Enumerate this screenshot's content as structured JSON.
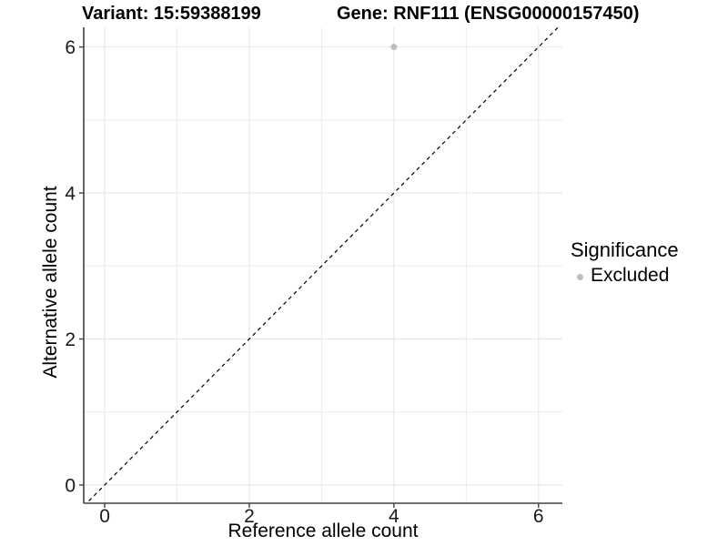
{
  "titles": {
    "variant": "Variant: 15:59388199",
    "gene": "Gene: RNF111 (ENSG00000157450)"
  },
  "legend": {
    "title": "Significance",
    "position": "right",
    "items": [
      {
        "label": "Excluded",
        "color": "#bebebe",
        "marker": "dot"
      }
    ]
  },
  "chart_data": {
    "type": "scatter",
    "xlabel": "Reference allele count",
    "ylabel": "Alternative allele count",
    "xlim": [
      -0.29,
      6.33
    ],
    "ylim": [
      -0.25,
      6.27
    ],
    "x_major_ticks": [
      0,
      2,
      4,
      6
    ],
    "y_major_ticks": [
      0,
      2,
      4,
      6
    ],
    "x_minor_ticks": [
      1,
      3,
      5
    ],
    "y_minor_ticks": [
      1,
      3,
      5
    ],
    "grid": true,
    "series": [
      {
        "name": "Excluded",
        "color": "#bebebe",
        "points": [
          {
            "x": 4,
            "y": 6
          }
        ]
      }
    ],
    "reference_line": {
      "type": "abline",
      "slope": 1,
      "intercept": 0,
      "style": "dashed",
      "color": "#000000"
    },
    "style": {
      "panel_background": "#ffffff",
      "grid_major_color": "#e4e4e4",
      "grid_minor_color": "#ececec",
      "axis_line_color": "#404040",
      "tick_text_color": "#1a1a1a",
      "point_radius": 3.5
    }
  }
}
